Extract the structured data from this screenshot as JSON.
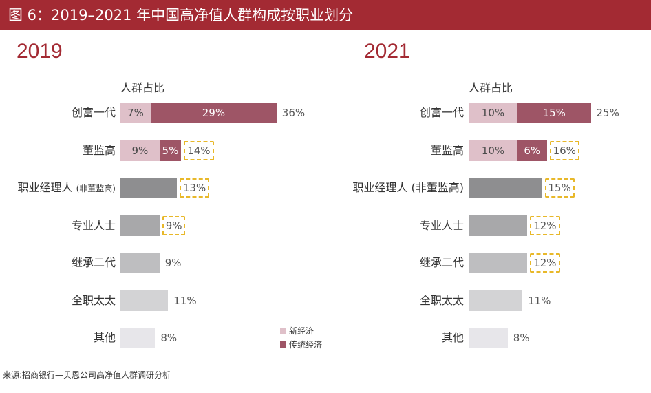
{
  "header": {
    "title": "图 6：2019–2021 年中国高净值人群构成按职业划分"
  },
  "footer": {
    "source": "来源:招商银行—贝恩公司高净值人群调研分析"
  },
  "legend": {
    "new_economy": "新经济",
    "traditional_economy": "传统经济"
  },
  "colors": {
    "new_economy": "#dfc0c9",
    "traditional_economy": "#9e5566",
    "header": "#a32a33",
    "highlight_border": "#e8b82a"
  },
  "chart_data": [
    {
      "type": "bar",
      "orientation": "horizontal",
      "stacked": true,
      "title": "2019",
      "ylabel": "人群占比",
      "unit": "%",
      "categories": [
        {
          "label": "创富一代",
          "note": "",
          "new_economy": 7,
          "traditional": 29,
          "total": 36,
          "single": null,
          "highlighted": false,
          "shade": "",
          "new_label": "7%",
          "trad_label": "29%",
          "total_label": "36%"
        },
        {
          "label": "董监高",
          "note": "",
          "new_economy": 9,
          "traditional": 5,
          "total": 14,
          "single": null,
          "highlighted": true,
          "shade": "",
          "new_label": "9%",
          "trad_label": "5%",
          "total_label": "14%"
        },
        {
          "label": "职业经理人 ",
          "note": "(非董监高)",
          "new_economy": null,
          "traditional": null,
          "total": 13,
          "single": 13,
          "highlighted": true,
          "shade": "#8e8e90",
          "new_label": "",
          "trad_label": "",
          "total_label": "13%"
        },
        {
          "label": "专业人士",
          "note": "",
          "new_economy": null,
          "traditional": null,
          "total": 9,
          "single": 9,
          "highlighted": true,
          "shade": "#a8a8aa",
          "new_label": "",
          "trad_label": "",
          "total_label": "9%"
        },
        {
          "label": "继承二代",
          "note": "",
          "new_economy": null,
          "traditional": null,
          "total": 9,
          "single": 9,
          "highlighted": false,
          "shade": "#bebec0",
          "new_label": "",
          "trad_label": "",
          "total_label": "9%"
        },
        {
          "label": "全职太太",
          "note": "",
          "new_economy": null,
          "traditional": null,
          "total": 11,
          "single": 11,
          "highlighted": false,
          "shade": "#d3d3d5",
          "new_label": "",
          "trad_label": "",
          "total_label": "11%"
        },
        {
          "label": "其他",
          "note": "",
          "new_economy": null,
          "traditional": null,
          "total": 8,
          "single": 8,
          "highlighted": false,
          "shade": "#e7e6ea",
          "new_label": "",
          "trad_label": "",
          "total_label": "8%"
        }
      ]
    },
    {
      "type": "bar",
      "orientation": "horizontal",
      "stacked": true,
      "title": "2021",
      "ylabel": "人群占比",
      "unit": "%",
      "categories": [
        {
          "label": "创富一代",
          "note": "",
          "new_economy": 10,
          "traditional": 15,
          "total": 25,
          "single": null,
          "highlighted": false,
          "shade": "",
          "new_label": "10%",
          "trad_label": "15%",
          "total_label": "25%"
        },
        {
          "label": "董监高",
          "note": "",
          "new_economy": 10,
          "traditional": 6,
          "total": 16,
          "single": null,
          "highlighted": true,
          "shade": "",
          "new_label": "10%",
          "trad_label": "6%",
          "total_label": "16%"
        },
        {
          "label": "职业经理人 (非董监高)",
          "note": "",
          "new_economy": null,
          "traditional": null,
          "total": 15,
          "single": 15,
          "highlighted": true,
          "shade": "#8e8e90",
          "new_label": "",
          "trad_label": "",
          "total_label": "15%"
        },
        {
          "label": "专业人士",
          "note": "",
          "new_economy": null,
          "traditional": null,
          "total": 12,
          "single": 12,
          "highlighted": true,
          "shade": "#a8a8aa",
          "new_label": "",
          "trad_label": "",
          "total_label": "12%"
        },
        {
          "label": "继承二代",
          "note": "",
          "new_economy": null,
          "traditional": null,
          "total": 12,
          "single": 12,
          "highlighted": true,
          "shade": "#bebec0",
          "new_label": "",
          "trad_label": "",
          "total_label": "12%"
        },
        {
          "label": "全职太太",
          "note": "",
          "new_economy": null,
          "traditional": null,
          "total": 11,
          "single": 11,
          "highlighted": false,
          "shade": "#d3d3d5",
          "new_label": "",
          "trad_label": "",
          "total_label": "11%"
        },
        {
          "label": "其他",
          "note": "",
          "new_economy": null,
          "traditional": null,
          "total": 8,
          "single": 8,
          "highlighted": false,
          "shade": "#e7e6ea",
          "new_label": "",
          "trad_label": "",
          "total_label": "8%"
        }
      ]
    }
  ]
}
